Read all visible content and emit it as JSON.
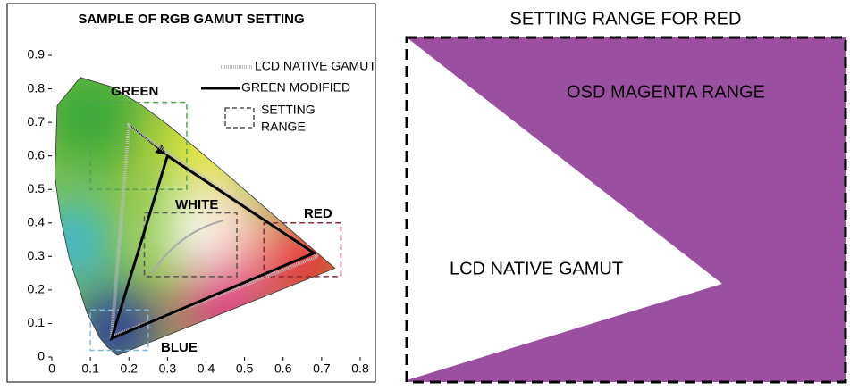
{
  "left_panel": {
    "title": "SAMPLE OF RGB GAMUT SETTING",
    "xlim": [
      0,
      0.8
    ],
    "ylim": [
      0,
      0.9
    ],
    "xticks": [
      0,
      0.1,
      0.2,
      0.3,
      0.4,
      0.5,
      0.6,
      0.7,
      0.8
    ],
    "yticks": [
      0,
      0.1,
      0.2,
      0.3,
      0.4,
      0.5,
      0.6,
      0.7,
      0.8,
      0.9
    ],
    "legend": {
      "native": "LCD NATIVE GAMUT",
      "modified": "GREEN MODIFIED",
      "range": [
        "SETTING",
        "RANGE"
      ]
    },
    "native_gamut": {
      "x": [
        0.2,
        0.69,
        0.155
      ],
      "y": [
        0.69,
        0.3,
        0.06
      ],
      "color": "#bdbdbd"
    },
    "modified_gamut": {
      "x": [
        0.3,
        0.68,
        0.155
      ],
      "y": [
        0.6,
        0.31,
        0.055
      ],
      "color": "#000000"
    },
    "ranges": [
      {
        "label": "GREEN",
        "color": "#5a9e5a",
        "x": [
          0.1,
          0.35
        ],
        "y": [
          0.5,
          0.76
        ]
      },
      {
        "label": "WHITE",
        "color": "#555555",
        "x": [
          0.24,
          0.48
        ],
        "y": [
          0.24,
          0.43
        ]
      },
      {
        "label": "RED",
        "color": "#8b2a3a",
        "x": [
          0.55,
          0.75
        ],
        "y": [
          0.24,
          0.4
        ]
      },
      {
        "label": "BLUE",
        "color": "#7ab8e0",
        "x": [
          0.1,
          0.25
        ],
        "y": [
          0.02,
          0.14
        ]
      }
    ]
  },
  "right_panel": {
    "title": "SETTING RANGE FOR RED",
    "magenta_label": "OSD MAGENTA RANGE",
    "native_label": "LCD NATIVE GAMUT",
    "color": "#9b4fa0"
  }
}
